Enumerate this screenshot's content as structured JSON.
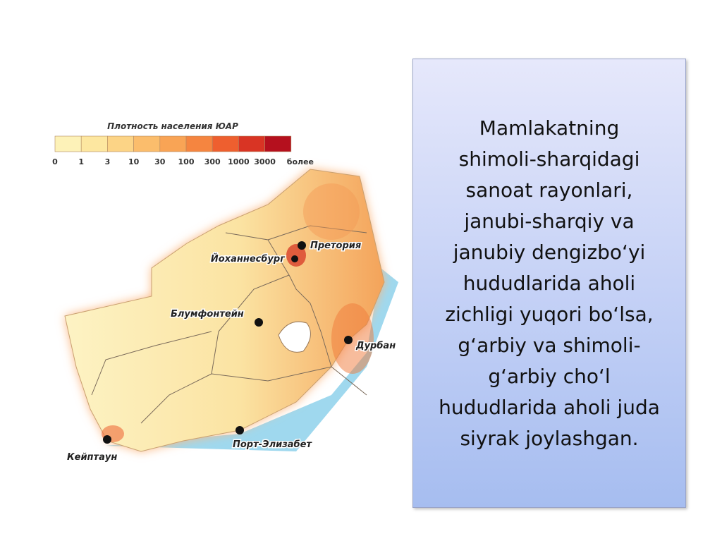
{
  "legend": {
    "title": "Плотность населения ЮАР",
    "labels": [
      "0",
      "1",
      "3",
      "10",
      "30",
      "100",
      "300",
      "1000",
      "3000",
      "более"
    ]
  },
  "cities": {
    "pretoria": "Претория",
    "johannesburg": "Йоханнесбург",
    "bloemfontein": "Блумфонтейн",
    "durban": "Дурбан",
    "port_elizabeth": "Порт-Элизабет",
    "cape_town": "Кейптаун"
  },
  "textbox": {
    "lines": [
      "Mamlakatning",
      "shimoli-sharqidagi",
      "sanoat rayonlari,",
      "janubi-sharqiy va",
      "janubiy dengizbo‘yi",
      "hududlarida aholi",
      "zichligi yuqori bo‘lsa,",
      "g‘arbiy va shimoli-",
      "g‘arbiy cho‘l",
      "hududlarida aholi juda",
      "siyrak joylashgan."
    ]
  }
}
